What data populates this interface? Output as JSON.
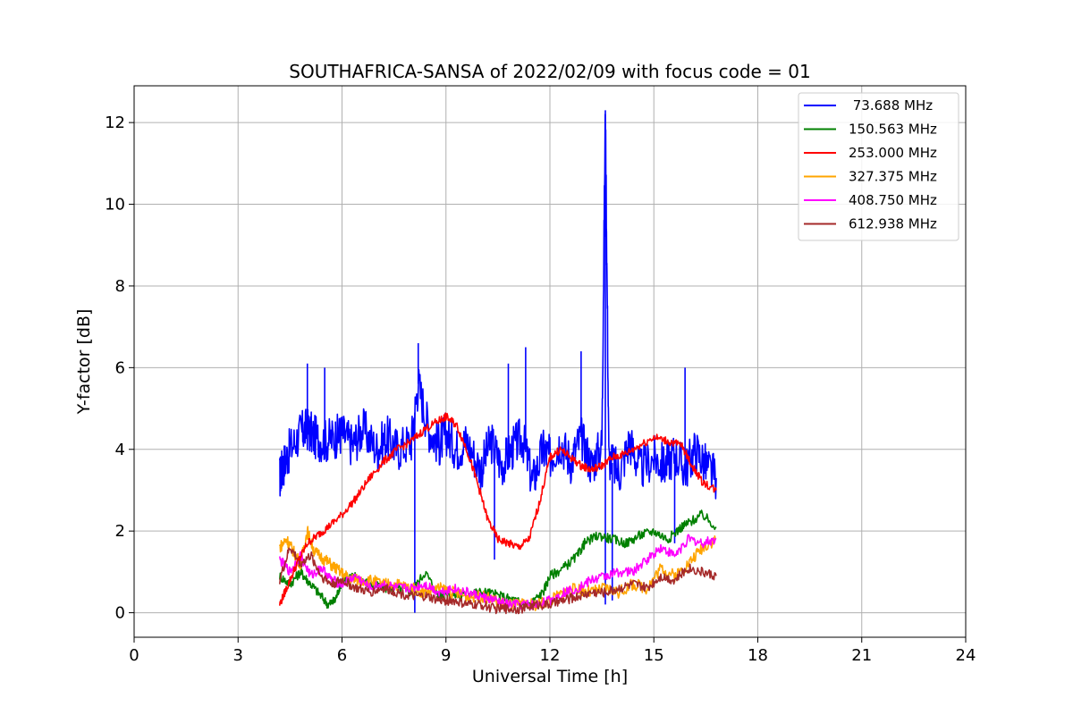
{
  "chart_data": {
    "type": "line",
    "title": "SOUTHAFRICA-SANSA of 2022/02/09 with focus code = 01",
    "xlabel": "Universal Time [h]",
    "ylabel": "Y-factor [dB]",
    "xlim": [
      0,
      24
    ],
    "ylim": [
      -0.6,
      12.9
    ],
    "xticks": [
      0,
      3,
      6,
      9,
      12,
      15,
      18,
      21,
      24
    ],
    "yticks": [
      0,
      2,
      4,
      6,
      8,
      10,
      12
    ],
    "grid": true,
    "legend_position": "top-right",
    "series": [
      {
        "name": " 73.688 MHz",
        "color": "#0000ff",
        "x": [
          4.2,
          4.3,
          4.5,
          4.8,
          5.0,
          5.2,
          5.5,
          5.8,
          6.0,
          6.3,
          6.6,
          7.0,
          7.3,
          7.6,
          8.0,
          8.2,
          8.5,
          8.8,
          9.0,
          9.3,
          9.6,
          10.0,
          10.3,
          10.6,
          10.9,
          11.2,
          11.5,
          11.8,
          12.0,
          12.3,
          12.6,
          12.9,
          13.2,
          13.5,
          13.6,
          13.7,
          14.0,
          14.3,
          14.6,
          15.0,
          15.3,
          15.6,
          15.9,
          16.2,
          16.5,
          16.8
        ],
        "y": [
          3.3,
          3.6,
          4.0,
          4.4,
          4.5,
          4.3,
          4.2,
          4.3,
          4.4,
          4.1,
          4.5,
          4.0,
          4.3,
          4.0,
          4.2,
          5.6,
          4.5,
          4.1,
          4.4,
          4.0,
          4.2,
          3.5,
          4.2,
          3.6,
          4.0,
          4.3,
          3.2,
          4.0,
          3.8,
          4.2,
          3.7,
          4.3,
          3.6,
          4.1,
          12.3,
          3.8,
          3.4,
          4.2,
          3.5,
          3.8,
          3.6,
          3.9,
          3.5,
          4.0,
          3.6,
          3.3
        ],
        "spikes": [
          [
            5.0,
            6.1
          ],
          [
            5.5,
            6.0
          ],
          [
            8.2,
            6.6
          ],
          [
            10.8,
            6.1
          ],
          [
            11.3,
            6.5
          ],
          [
            12.9,
            6.4
          ],
          [
            13.6,
            12.3
          ],
          [
            15.9,
            6.0
          ],
          [
            8.1,
            0.0
          ],
          [
            10.4,
            1.3
          ],
          [
            13.6,
            0.2
          ],
          [
            13.8,
            0.3
          ],
          [
            15.6,
            1.7
          ]
        ]
      },
      {
        "name": "150.563 MHz",
        "color": "#008000",
        "x": [
          4.2,
          4.5,
          4.8,
          5.0,
          5.3,
          5.6,
          5.8,
          6.0,
          6.4,
          6.8,
          7.2,
          7.6,
          8.0,
          8.4,
          8.8,
          9.0,
          9.4,
          9.8,
          10.2,
          10.6,
          11.0,
          11.4,
          11.8,
          12.0,
          12.4,
          12.8,
          13.0,
          13.4,
          13.8,
          14.2,
          14.6,
          15.0,
          15.4,
          15.8,
          16.0,
          16.4,
          16.8
        ],
        "y": [
          0.9,
          0.7,
          1.0,
          0.8,
          0.5,
          0.2,
          0.3,
          0.8,
          0.9,
          0.7,
          0.6,
          0.6,
          0.5,
          1.0,
          0.4,
          0.5,
          0.4,
          0.5,
          0.5,
          0.4,
          0.3,
          0.2,
          0.5,
          0.9,
          1.1,
          1.4,
          1.7,
          1.9,
          1.8,
          1.7,
          1.9,
          2.0,
          1.8,
          2.1,
          2.2,
          2.4,
          2.1
        ]
      },
      {
        "name": "253.000 MHz",
        "color": "#ff0000",
        "x": [
          4.2,
          4.4,
          4.7,
          5.0,
          5.3,
          5.6,
          6.0,
          6.4,
          6.8,
          7.2,
          7.6,
          8.0,
          8.4,
          8.8,
          9.0,
          9.3,
          9.6,
          9.9,
          10.2,
          10.5,
          10.8,
          11.1,
          11.4,
          11.7,
          12.0,
          12.3,
          12.6,
          12.9,
          13.2,
          13.5,
          13.8,
          14.2,
          14.6,
          15.0,
          15.4,
          15.8,
          16.1,
          16.4,
          16.8
        ],
        "y": [
          0.2,
          0.6,
          1.2,
          1.7,
          1.9,
          2.1,
          2.4,
          2.8,
          3.3,
          3.7,
          4.0,
          4.2,
          4.5,
          4.7,
          4.8,
          4.6,
          4.0,
          3.2,
          2.3,
          1.8,
          1.7,
          1.6,
          1.8,
          2.7,
          3.8,
          4.0,
          3.8,
          3.6,
          3.5,
          3.6,
          3.8,
          3.9,
          4.1,
          4.3,
          4.2,
          4.1,
          3.6,
          3.2,
          3.0
        ]
      },
      {
        "name": "327.375 MHz",
        "color": "#ffa500",
        "x": [
          4.2,
          4.4,
          4.6,
          4.8,
          5.0,
          5.2,
          5.5,
          5.8,
          6.1,
          6.4,
          6.8,
          7.2,
          7.6,
          8.0,
          8.4,
          8.8,
          9.2,
          9.6,
          10.0,
          10.4,
          10.8,
          11.2,
          11.6,
          12.0,
          12.4,
          12.8,
          13.2,
          13.6,
          14.0,
          14.4,
          14.8,
          15.2,
          15.6,
          16.0,
          16.4,
          16.8
        ],
        "y": [
          1.6,
          1.8,
          1.5,
          1.2,
          2.0,
          1.5,
          1.3,
          1.1,
          0.9,
          0.8,
          0.8,
          0.7,
          0.7,
          0.6,
          0.5,
          0.6,
          0.5,
          0.4,
          0.4,
          0.3,
          0.2,
          0.2,
          0.2,
          0.3,
          0.5,
          0.6,
          0.5,
          0.6,
          0.5,
          0.7,
          0.6,
          1.1,
          0.9,
          1.2,
          1.6,
          1.8
        ]
      },
      {
        "name": "408.750 MHz",
        "color": "#ff00ff",
        "x": [
          4.2,
          4.5,
          4.8,
          5.1,
          5.4,
          5.7,
          6.0,
          6.4,
          6.8,
          7.2,
          7.6,
          8.0,
          8.4,
          8.8,
          9.2,
          9.6,
          10.0,
          10.4,
          10.8,
          11.2,
          11.6,
          12.0,
          12.4,
          12.8,
          13.2,
          13.6,
          14.0,
          14.4,
          14.8,
          15.2,
          15.6,
          16.0,
          16.4,
          16.8
        ],
        "y": [
          1.3,
          1.0,
          1.4,
          0.9,
          1.1,
          0.8,
          0.7,
          0.9,
          0.6,
          0.7,
          0.6,
          0.6,
          0.7,
          0.5,
          0.6,
          0.5,
          0.4,
          0.3,
          0.2,
          0.2,
          0.2,
          0.3,
          0.5,
          0.6,
          0.8,
          0.9,
          1.0,
          1.0,
          1.3,
          1.6,
          1.4,
          1.8,
          1.7,
          1.8
        ]
      },
      {
        "name": "612.938 MHz",
        "color": "#a52a2a",
        "x": [
          4.2,
          4.5,
          4.8,
          5.1,
          5.4,
          5.7,
          6.0,
          6.4,
          6.8,
          7.2,
          7.6,
          8.0,
          8.4,
          8.8,
          9.2,
          9.6,
          10.0,
          10.4,
          10.8,
          11.2,
          11.6,
          12.0,
          12.4,
          12.8,
          13.2,
          13.6,
          14.0,
          14.4,
          14.8,
          15.2,
          15.6,
          16.0,
          16.4,
          16.8
        ],
        "y": [
          0.8,
          1.6,
          1.2,
          1.4,
          0.9,
          0.7,
          0.8,
          0.6,
          0.5,
          0.6,
          0.5,
          0.4,
          0.4,
          0.3,
          0.3,
          0.2,
          0.2,
          0.1,
          0.1,
          0.1,
          0.2,
          0.2,
          0.3,
          0.4,
          0.5,
          0.5,
          0.6,
          0.7,
          0.6,
          0.9,
          0.8,
          1.1,
          1.0,
          0.9
        ]
      }
    ]
  }
}
